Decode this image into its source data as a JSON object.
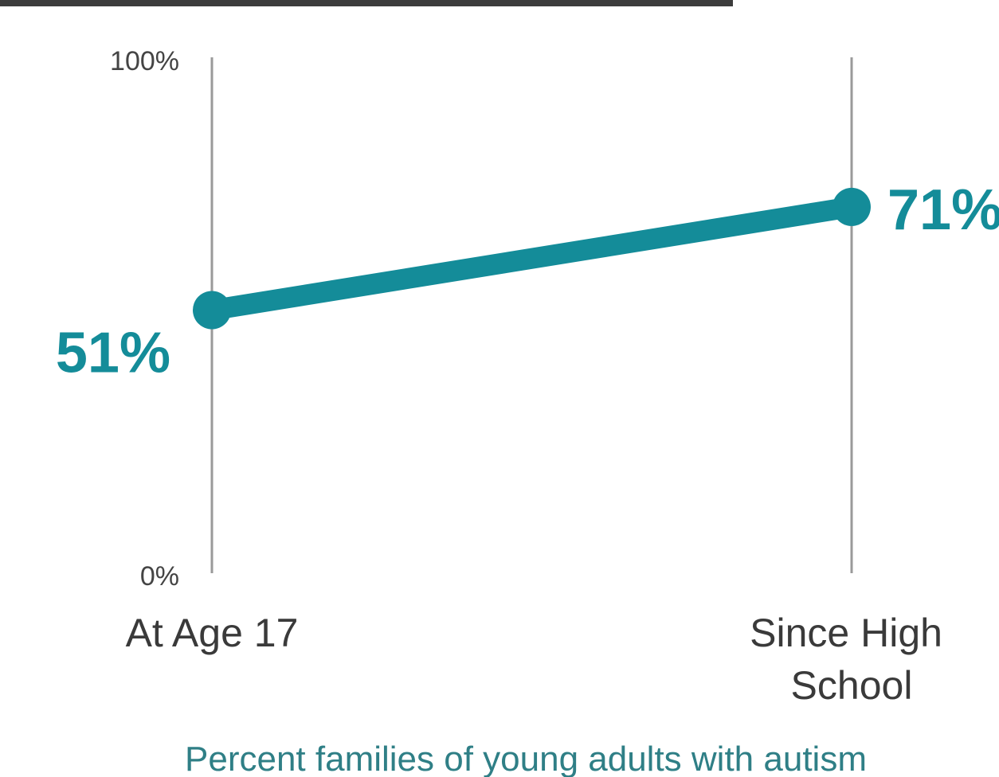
{
  "chart_data": {
    "type": "line",
    "categories": [
      "At Age 17",
      "Since High School"
    ],
    "category_lines": [
      [
        "At Age 17"
      ],
      [
        "Since High",
        "School"
      ]
    ],
    "values": [
      51,
      71
    ],
    "value_labels": [
      "51%",
      "71%"
    ],
    "ylim": [
      0,
      100
    ],
    "yticks": [
      "0%",
      "100%"
    ],
    "xlabel": "Percent families of young adults with autism",
    "grid": false,
    "legend": "none"
  },
  "colors": {
    "series": "#148c99",
    "axis_line": "#9a9a9a",
    "footnote": "#2f7f86"
  }
}
